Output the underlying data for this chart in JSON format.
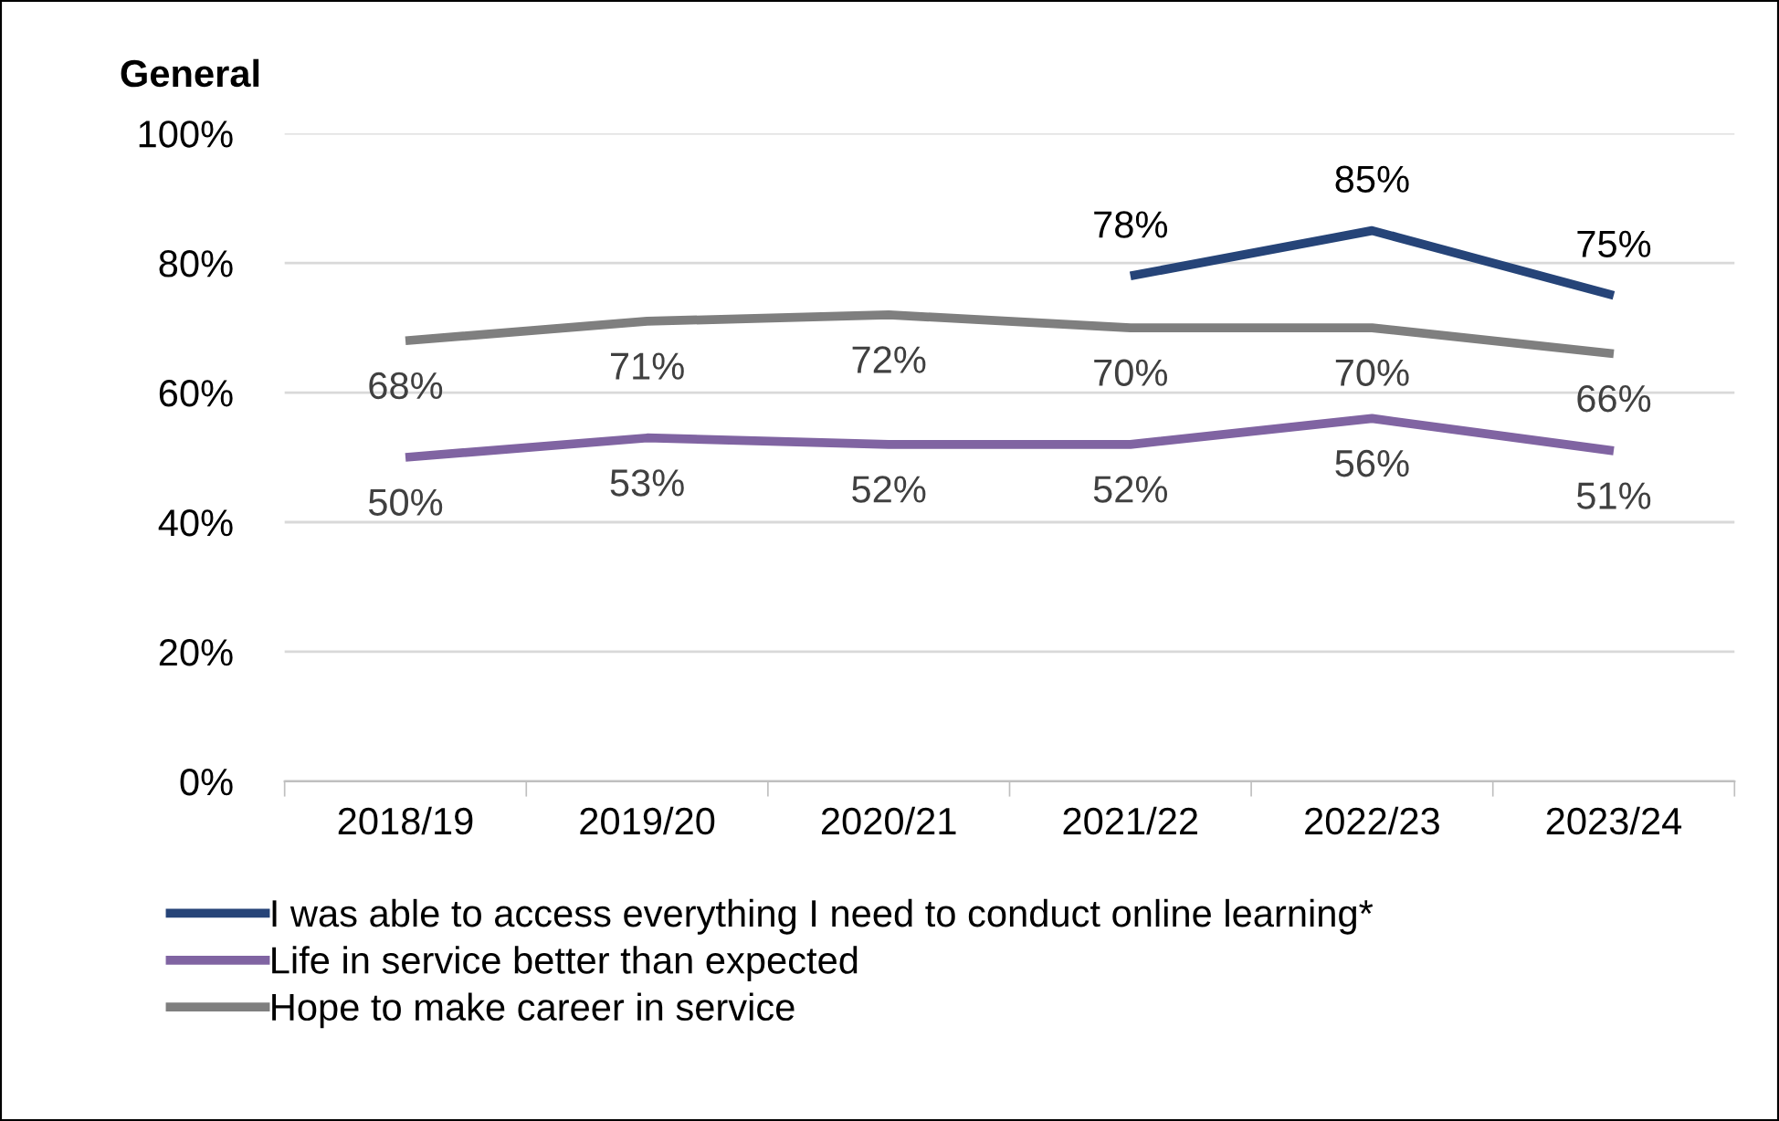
{
  "chart_data": {
    "type": "line",
    "ylabel": "General",
    "categories": [
      "2018/19",
      "2019/20",
      "2020/21",
      "2021/22",
      "2022/23",
      "2023/24"
    ],
    "series": [
      {
        "name": "I was able to access everything I need to conduct online learning*",
        "color": "#264478",
        "values": [
          null,
          null,
          null,
          78,
          85,
          75
        ],
        "value_labels": [
          null,
          null,
          null,
          "78%",
          "85%",
          "75%"
        ]
      },
      {
        "name": "Life in service better than expected",
        "color": "#8064a2",
        "values": [
          50,
          53,
          52,
          52,
          56,
          51
        ],
        "value_labels": [
          "50%",
          "53%",
          "52%",
          "52%",
          "56%",
          "51%"
        ]
      },
      {
        "name": "Hope to make career in service",
        "color": "#7f7f7f",
        "values": [
          68,
          71,
          72,
          70,
          70,
          66
        ],
        "value_labels": [
          "68%",
          "71%",
          "72%",
          "70%",
          "70%",
          "66%"
        ]
      }
    ],
    "ylim": [
      0,
      100
    ],
    "yticks": [
      {
        "value": 0,
        "label": "0%"
      },
      {
        "value": 20,
        "label": "20%"
      },
      {
        "value": 40,
        "label": "40%"
      },
      {
        "value": 60,
        "label": "60%"
      },
      {
        "value": 80,
        "label": "80%"
      },
      {
        "value": 100,
        "label": "100%"
      }
    ],
    "grid": "y",
    "legend": "bottom",
    "marker": "none",
    "line_style": "solid"
  }
}
